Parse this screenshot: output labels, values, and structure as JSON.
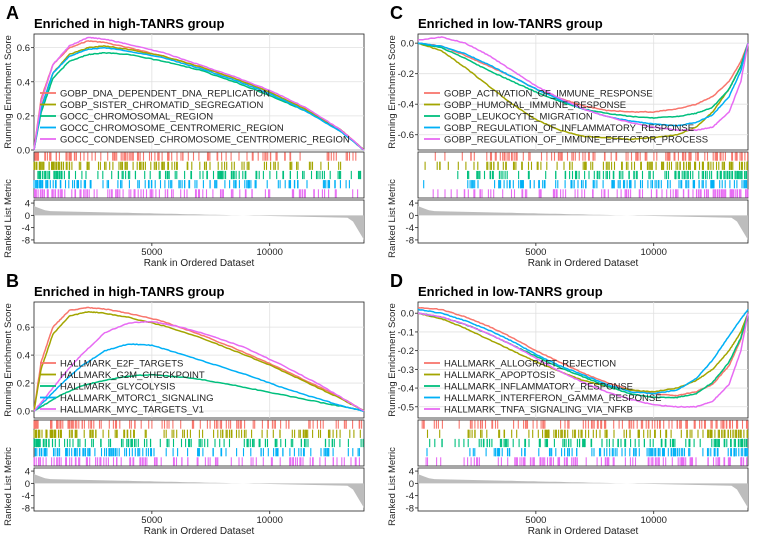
{
  "chart_data": [
    {
      "panel": "A",
      "type": "line",
      "title": "Enriched in high-TANRS group",
      "ylabel_top": "Running Enrichment Score",
      "ylabel_bottom": "Ranked List Metric",
      "xlabel": "Rank in Ordered Dataset",
      "xlim": [
        0,
        14000
      ],
      "ylim": [
        0,
        0.68
      ],
      "yticks": [
        0.0,
        0.2,
        0.4,
        0.6
      ],
      "ytick_labels": [
        "0.0",
        "0.2",
        "0.4",
        "0.6"
      ],
      "xticks": [
        5000,
        10000
      ],
      "xtick_labels": [
        "5000",
        "10000"
      ],
      "metric_ylim": [
        -9,
        5
      ],
      "metric_yticks": [
        4,
        0,
        -4,
        -8
      ],
      "metric_ytick_labels": [
        "4",
        "0",
        "-4",
        "-8"
      ],
      "series": [
        {
          "name": "GOBP_DNA_DEPENDENT_DNA_REPLICATION",
          "color": "#F8766D",
          "x": [
            0,
            300,
            800,
            1500,
            2300,
            3000,
            4000,
            5500,
            7000,
            8500,
            10000,
            11500,
            13000,
            14000
          ],
          "y": [
            0,
            0.3,
            0.5,
            0.6,
            0.64,
            0.63,
            0.6,
            0.55,
            0.49,
            0.42,
            0.34,
            0.24,
            0.12,
            0.0
          ]
        },
        {
          "name": "GOBP_SISTER_CHROMATID_SEGREGATION",
          "color": "#A3A500",
          "x": [
            0,
            300,
            800,
            1500,
            2300,
            3000,
            4000,
            5500,
            7000,
            8500,
            10000,
            11500,
            13000,
            14000
          ],
          "y": [
            0,
            0.25,
            0.45,
            0.56,
            0.6,
            0.61,
            0.59,
            0.55,
            0.49,
            0.42,
            0.34,
            0.24,
            0.12,
            0.0
          ]
        },
        {
          "name": "GOCC_CHROMOSOMAL_REGION",
          "color": "#00BF7D",
          "x": [
            0,
            300,
            800,
            1500,
            2300,
            3000,
            4000,
            5500,
            7000,
            8500,
            10000,
            11500,
            13000,
            14000
          ],
          "y": [
            0,
            0.22,
            0.42,
            0.52,
            0.56,
            0.57,
            0.56,
            0.52,
            0.47,
            0.4,
            0.32,
            0.23,
            0.11,
            0.0
          ]
        },
        {
          "name": "GOCC_CHROMOSOME_CENTROMERIC_REGION",
          "color": "#00B0F6",
          "x": [
            0,
            300,
            800,
            1500,
            2300,
            3000,
            4000,
            5500,
            7000,
            8500,
            10000,
            11500,
            13000,
            14000
          ],
          "y": [
            0,
            0.24,
            0.45,
            0.55,
            0.59,
            0.6,
            0.58,
            0.54,
            0.48,
            0.41,
            0.33,
            0.23,
            0.11,
            0.0
          ]
        },
        {
          "name": "GOCC_CONDENSED_CHROMOSOME_CENTROMERIC_REGION",
          "color": "#E76BF3",
          "x": [
            0,
            300,
            800,
            1500,
            2300,
            3000,
            4000,
            5500,
            7000,
            8500,
            10000,
            11500,
            13000,
            14000
          ],
          "y": [
            0,
            0.28,
            0.5,
            0.61,
            0.66,
            0.65,
            0.62,
            0.57,
            0.5,
            0.43,
            0.35,
            0.25,
            0.12,
            0.0
          ]
        }
      ]
    },
    {
      "panel": "B",
      "type": "line",
      "title": "Enriched in high-TANRS group",
      "ylabel_top": "Running Enrichment Score",
      "ylabel_bottom": "Ranked List Metric",
      "xlabel": "Rank in Ordered Dataset",
      "xlim": [
        0,
        14000
      ],
      "ylim": [
        -0.05,
        0.78
      ],
      "yticks": [
        0.0,
        0.2,
        0.4,
        0.6
      ],
      "ytick_labels": [
        "0.0",
        "0.2",
        "0.4",
        "0.6"
      ],
      "xticks": [
        5000,
        10000
      ],
      "xtick_labels": [
        "5000",
        "10000"
      ],
      "metric_ylim": [
        -9,
        5
      ],
      "metric_yticks": [
        4,
        0,
        -4,
        -8
      ],
      "metric_ytick_labels": [
        "4",
        "0",
        "-4",
        "-8"
      ],
      "series": [
        {
          "name": "HALLMARK_E2F_TARGETS",
          "color": "#F8766D",
          "x": [
            0,
            300,
            800,
            1500,
            2300,
            3000,
            4000,
            5500,
            7000,
            8500,
            10000,
            11500,
            13000,
            14000
          ],
          "y": [
            0,
            0.35,
            0.6,
            0.72,
            0.74,
            0.73,
            0.7,
            0.64,
            0.55,
            0.45,
            0.34,
            0.22,
            0.1,
            0.0
          ]
        },
        {
          "name": "HALLMARK_G2M_CHECKPOINT",
          "color": "#A3A500",
          "x": [
            0,
            300,
            800,
            1500,
            2300,
            3000,
            4000,
            5500,
            7000,
            8500,
            10000,
            11500,
            13000,
            14000
          ],
          "y": [
            0,
            0.3,
            0.55,
            0.68,
            0.71,
            0.7,
            0.67,
            0.61,
            0.53,
            0.43,
            0.33,
            0.21,
            0.09,
            0.0
          ]
        },
        {
          "name": "HALLMARK_GLYCOLYSIS",
          "color": "#00BF7D",
          "x": [
            0,
            500,
            1200,
            2000,
            3000,
            4000,
            5000,
            6500,
            8000,
            9500,
            11000,
            12500,
            13500,
            14000
          ],
          "y": [
            0,
            0.05,
            0.12,
            0.18,
            0.22,
            0.25,
            0.26,
            0.24,
            0.2,
            0.15,
            0.1,
            0.05,
            0.02,
            0.0
          ]
        },
        {
          "name": "HALLMARK_MTORC1_SIGNALING",
          "color": "#00B0F6",
          "x": [
            0,
            500,
            1200,
            2000,
            3000,
            4000,
            5000,
            6000,
            7500,
            9000,
            10500,
            12000,
            13200,
            14000
          ],
          "y": [
            0,
            0.08,
            0.2,
            0.32,
            0.43,
            0.48,
            0.47,
            0.42,
            0.34,
            0.26,
            0.17,
            0.09,
            0.03,
            0.0
          ]
        },
        {
          "name": "HALLMARK_MYC_TARGETS_V1",
          "color": "#E76BF3",
          "x": [
            0,
            500,
            1200,
            2000,
            3000,
            4000,
            5000,
            6000,
            7500,
            9000,
            10500,
            12000,
            13200,
            14000
          ],
          "y": [
            0,
            0.1,
            0.25,
            0.4,
            0.56,
            0.63,
            0.64,
            0.61,
            0.54,
            0.45,
            0.33,
            0.2,
            0.08,
            0.0
          ]
        }
      ]
    },
    {
      "panel": "C",
      "type": "line",
      "title": "Enriched in low-TANRS group",
      "ylabel_top": "Running Enrichment Score",
      "ylabel_bottom": "Ranked List Metric",
      "xlabel": "Rank in Ordered Dataset",
      "xlim": [
        0,
        14000
      ],
      "ylim": [
        -0.7,
        0.06
      ],
      "yticks": [
        0.0,
        -0.2,
        -0.4,
        -0.6
      ],
      "ytick_labels": [
        "0.0",
        "-0.2",
        "-0.4",
        "-0.6"
      ],
      "xticks": [
        5000,
        10000
      ],
      "xtick_labels": [
        "5000",
        "10000"
      ],
      "metric_ylim": [
        -9,
        5
      ],
      "metric_yticks": [
        4,
        0,
        -4,
        -8
      ],
      "metric_ytick_labels": [
        "4",
        "0",
        "-4",
        "-8"
      ],
      "series": [
        {
          "name": "GOBP_ACTIVATION_OF_IMMUNE_RESPONSE",
          "color": "#F8766D",
          "x": [
            0,
            1000,
            2000,
            3000,
            4000,
            5000,
            6000,
            7000,
            8000,
            9000,
            10000,
            11000,
            11800,
            12500,
            13200,
            13700,
            14000
          ],
          "y": [
            0,
            -0.02,
            -0.08,
            -0.15,
            -0.22,
            -0.3,
            -0.36,
            -0.41,
            -0.44,
            -0.45,
            -0.45,
            -0.43,
            -0.4,
            -0.35,
            -0.25,
            -0.12,
            0.0
          ]
        },
        {
          "name": "GOBP_HUMORAL_IMMUNE_RESPONSE",
          "color": "#A3A500",
          "x": [
            0,
            1000,
            2000,
            3000,
            4000,
            5000,
            6000,
            7000,
            8000,
            9000,
            10000,
            11000,
            11800,
            12500,
            13200,
            13700,
            14000
          ],
          "y": [
            0,
            -0.05,
            -0.16,
            -0.28,
            -0.4,
            -0.5,
            -0.57,
            -0.61,
            -0.62,
            -0.63,
            -0.62,
            -0.6,
            -0.55,
            -0.45,
            -0.3,
            -0.15,
            0.0
          ]
        },
        {
          "name": "GOBP_LEUKOCYTE_MIGRATION",
          "color": "#00BF7D",
          "x": [
            0,
            1000,
            2000,
            3000,
            4000,
            5000,
            6000,
            7000,
            8000,
            9000,
            10000,
            11000,
            11800,
            12500,
            13200,
            13700,
            14000
          ],
          "y": [
            0,
            -0.03,
            -0.1,
            -0.18,
            -0.25,
            -0.32,
            -0.38,
            -0.43,
            -0.46,
            -0.48,
            -0.49,
            -0.48,
            -0.46,
            -0.42,
            -0.3,
            -0.15,
            0.0
          ]
        },
        {
          "name": "GOBP_REGULATION_OF_INFLAMMATORY_RESPONSE",
          "color": "#00B0F6",
          "x": [
            0,
            1000,
            2000,
            3000,
            4000,
            5000,
            6000,
            7000,
            8000,
            9000,
            10000,
            11000,
            11800,
            12500,
            13200,
            13700,
            14000
          ],
          "y": [
            0,
            -0.02,
            -0.07,
            -0.14,
            -0.22,
            -0.3,
            -0.37,
            -0.43,
            -0.48,
            -0.51,
            -0.53,
            -0.54,
            -0.52,
            -0.47,
            -0.35,
            -0.18,
            0.0
          ]
        },
        {
          "name": "GOBP_REGULATION_OF_IMMUNE_EFFECTOR_PROCESS",
          "color": "#E76BF3",
          "x": [
            0,
            1000,
            2000,
            3000,
            4000,
            5000,
            6000,
            7000,
            8000,
            9000,
            10000,
            11000,
            11800,
            12500,
            13200,
            13700,
            14000
          ],
          "y": [
            0.02,
            0.04,
            0.0,
            -0.08,
            -0.18,
            -0.28,
            -0.36,
            -0.43,
            -0.48,
            -0.52,
            -0.55,
            -0.57,
            -0.57,
            -0.55,
            -0.45,
            -0.25,
            0.0
          ]
        }
      ]
    },
    {
      "panel": "D",
      "type": "line",
      "title": "Enriched in low-TANRS group",
      "ylabel_top": "Running Enrichment Score",
      "ylabel_bottom": "Ranked List Metric",
      "xlabel": "Rank in Ordered Dataset",
      "xlim": [
        0,
        14000
      ],
      "ylim": [
        -0.56,
        0.06
      ],
      "yticks": [
        0.0,
        -0.1,
        -0.2,
        -0.3,
        -0.4,
        -0.5
      ],
      "ytick_labels": [
        "0.0",
        "-0.1",
        "-0.2",
        "-0.3",
        "-0.4",
        "-0.5"
      ],
      "xticks": [
        5000,
        10000
      ],
      "xtick_labels": [
        "5000",
        "10000"
      ],
      "metric_ylim": [
        -9,
        5
      ],
      "metric_yticks": [
        4,
        0,
        -4,
        -8
      ],
      "metric_ytick_labels": [
        "4",
        "0",
        "-4",
        "-8"
      ],
      "series": [
        {
          "name": "HALLMARK_ALLOGRAFT_REJECTION",
          "color": "#F8766D",
          "x": [
            0,
            1000,
            2000,
            3000,
            4000,
            5000,
            6000,
            7000,
            8000,
            9000,
            10000,
            11000,
            11800,
            12500,
            13200,
            13700,
            14000
          ],
          "y": [
            0.03,
            0.02,
            -0.02,
            -0.07,
            -0.13,
            -0.2,
            -0.26,
            -0.32,
            -0.37,
            -0.41,
            -0.43,
            -0.44,
            -0.42,
            -0.38,
            -0.28,
            -0.14,
            0.0
          ]
        },
        {
          "name": "HALLMARK_APOPTOSIS",
          "color": "#A3A500",
          "x": [
            0,
            1000,
            2000,
            3000,
            4000,
            5000,
            6000,
            7000,
            8000,
            9000,
            10000,
            11000,
            11800,
            12500,
            13200,
            13700,
            14000
          ],
          "y": [
            0,
            -0.03,
            -0.08,
            -0.14,
            -0.2,
            -0.26,
            -0.31,
            -0.36,
            -0.39,
            -0.41,
            -0.42,
            -0.4,
            -0.36,
            -0.3,
            -0.2,
            -0.1,
            0.0
          ]
        },
        {
          "name": "HALLMARK_INFLAMMATORY_RESPONSE",
          "color": "#00BF7D",
          "x": [
            0,
            1000,
            2000,
            3000,
            4000,
            5000,
            6000,
            7000,
            8000,
            9000,
            10000,
            11000,
            11800,
            12500,
            13200,
            13700,
            14000
          ],
          "y": [
            0,
            -0.02,
            -0.06,
            -0.11,
            -0.17,
            -0.23,
            -0.29,
            -0.34,
            -0.39,
            -0.43,
            -0.45,
            -0.45,
            -0.43,
            -0.37,
            -0.26,
            -0.13,
            0.0
          ]
        },
        {
          "name": "HALLMARK_INTERFERON_GAMMA_RESPONSE",
          "color": "#00B0F6",
          "x": [
            0,
            1000,
            2000,
            3000,
            4000,
            5000,
            6000,
            7000,
            8000,
            9000,
            10000,
            11000,
            11800,
            12500,
            13200,
            13700,
            14000
          ],
          "y": [
            0.02,
            0.0,
            -0.04,
            -0.09,
            -0.15,
            -0.22,
            -0.28,
            -0.33,
            -0.38,
            -0.42,
            -0.43,
            -0.41,
            -0.35,
            -0.25,
            -0.12,
            -0.03,
            0.02
          ]
        },
        {
          "name": "HALLMARK_TNFA_SIGNALING_VIA_NFKB",
          "color": "#E76BF3",
          "x": [
            0,
            1000,
            2000,
            3000,
            4000,
            5000,
            6000,
            7000,
            8000,
            9000,
            10000,
            11000,
            11800,
            12500,
            13200,
            13700,
            14000
          ],
          "y": [
            0,
            -0.02,
            -0.06,
            -0.11,
            -0.17,
            -0.24,
            -0.31,
            -0.37,
            -0.42,
            -0.46,
            -0.49,
            -0.5,
            -0.5,
            -0.47,
            -0.38,
            -0.2,
            0.0
          ]
        }
      ]
    }
  ]
}
